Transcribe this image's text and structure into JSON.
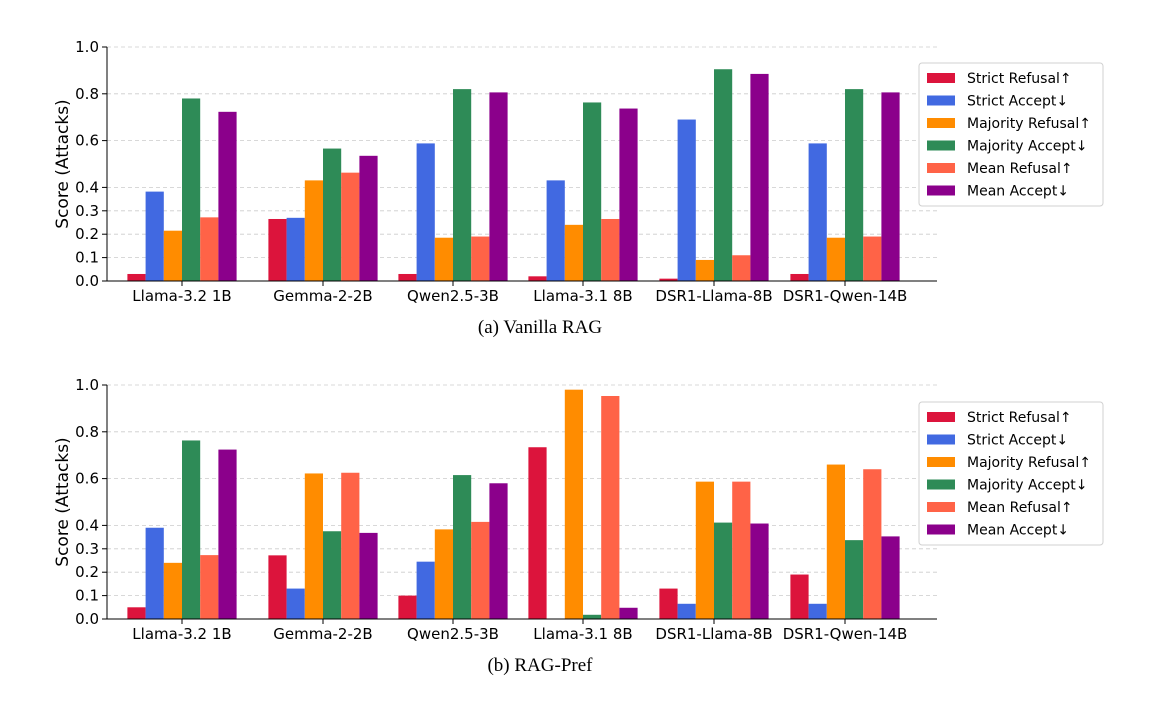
{
  "chart_data": [
    {
      "type": "bar",
      "caption": "(a)  Vanilla RAG",
      "ylabel": "Score (Attacks)",
      "ylim": [
        0,
        1.0
      ],
      "yticks": [
        "0.0",
        "0.1",
        "0.2",
        "0.3",
        "0.4",
        "0.6",
        "0.8",
        "1.0"
      ],
      "grid": true,
      "legend_position": "right",
      "categories": [
        "Llama-3.2 1B",
        "Gemma-2-2B",
        "Qwen2.5-3B",
        "Llama-3.1 8B",
        "DSR1-Llama-8B",
        "DSR1-Qwen-14B"
      ],
      "series": [
        {
          "name": "Strict Refusal↑",
          "color": "#dc143c",
          "values": [
            0.03,
            0.265,
            0.03,
            0.02,
            0.01,
            0.03
          ]
        },
        {
          "name": "Strict Accept↓",
          "color": "#4169e1",
          "values": [
            0.382,
            0.27,
            0.588,
            0.43,
            0.69,
            0.588
          ]
        },
        {
          "name": "Majority Refusal↑",
          "color": "#ff8c00",
          "values": [
            0.215,
            0.43,
            0.185,
            0.24,
            0.09,
            0.185
          ]
        },
        {
          "name": "Majority Accept↓",
          "color": "#2e8b57",
          "values": [
            0.78,
            0.566,
            0.82,
            0.763,
            0.905,
            0.82
          ]
        },
        {
          "name": "Mean Refusal↑",
          "color": "#ff6347",
          "values": [
            0.272,
            0.463,
            0.19,
            0.265,
            0.11,
            0.19
          ]
        },
        {
          "name": "Mean Accept↓",
          "color": "#8b008b",
          "values": [
            0.723,
            0.535,
            0.806,
            0.737,
            0.885,
            0.806
          ]
        }
      ]
    },
    {
      "type": "bar",
      "caption": "(b)  RAG-Pref",
      "ylabel": "Score (Attacks)",
      "ylim": [
        0,
        1.0
      ],
      "yticks": [
        "0.0",
        "0.1",
        "0.2",
        "0.3",
        "0.4",
        "0.6",
        "0.8",
        "1.0"
      ],
      "grid": true,
      "legend_position": "right",
      "categories": [
        "Llama-3.2 1B",
        "Gemma-2-2B",
        "Qwen2.5-3B",
        "Llama-3.1 8B",
        "DSR1-Llama-8B",
        "DSR1-Qwen-14B"
      ],
      "series": [
        {
          "name": "Strict Refusal↑",
          "color": "#dc143c",
          "values": [
            0.05,
            0.272,
            0.1,
            0.734,
            0.13,
            0.19
          ]
        },
        {
          "name": "Strict Accept↓",
          "color": "#4169e1",
          "values": [
            0.39,
            0.13,
            0.245,
            0.0,
            0.065,
            0.065
          ]
        },
        {
          "name": "Majority Refusal↑",
          "color": "#ff8c00",
          "values": [
            0.24,
            0.622,
            0.383,
            0.98,
            0.587,
            0.66
          ]
        },
        {
          "name": "Majority Accept↓",
          "color": "#2e8b57",
          "values": [
            0.763,
            0.375,
            0.615,
            0.018,
            0.412,
            0.337
          ]
        },
        {
          "name": "Mean Refusal↑",
          "color": "#ff6347",
          "values": [
            0.273,
            0.625,
            0.415,
            0.953,
            0.587,
            0.64
          ]
        },
        {
          "name": "Mean Accept↓",
          "color": "#8b008b",
          "values": [
            0.724,
            0.368,
            0.58,
            0.048,
            0.408,
            0.353
          ]
        }
      ]
    }
  ]
}
